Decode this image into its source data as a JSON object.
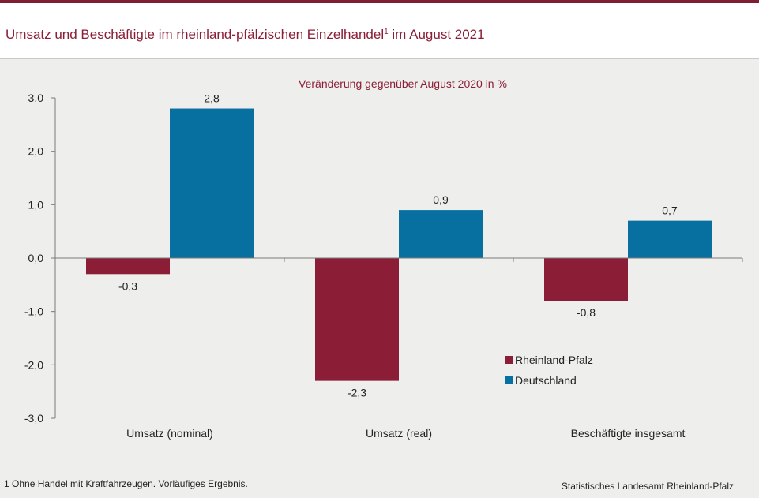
{
  "header": {
    "title": "Umsatz und Beschäftigte im rheinland-pfälzischen Einzelhandel",
    "title_sup": "1",
    "title_suffix": " im August 2021"
  },
  "footer": {
    "footnote": "1 Ohne Handel mit Kraftfahrzeugen.  Vorläufiges  Ergebnis.",
    "source": "Statistisches Landesamt  Rheinland-Pfalz"
  },
  "colors": {
    "accent": "#7f1d32",
    "rheinland_pfalz": "#8b1e36",
    "deutschland": "#0870a0"
  },
  "chart_data": {
    "type": "bar",
    "subtitle": "Veränderung  gegenüber  August 2020 in %",
    "categories": [
      "Umsatz (nominal)",
      "Umsatz (real)",
      "Beschäftigte insgesamt"
    ],
    "series": [
      {
        "name": "Rheinland-Pfalz",
        "values": [
          -0.3,
          -2.3,
          -0.8
        ],
        "labels": [
          "-0,3",
          "-2,3",
          "-0,8"
        ]
      },
      {
        "name": "Deutschland",
        "values": [
          2.8,
          0.9,
          0.7
        ],
        "labels": [
          "2,8",
          "0,9",
          "0,7"
        ]
      }
    ],
    "ylim": [
      -3,
      3
    ],
    "yticks": [
      3,
      2,
      1,
      0,
      -1,
      -2,
      -3
    ],
    "ytick_labels": [
      "3,0",
      "2,0",
      "1,0",
      "0,0",
      "-1,0",
      "-2,0",
      "-3,0"
    ],
    "legend_position": "lower-right",
    "grid": false
  }
}
